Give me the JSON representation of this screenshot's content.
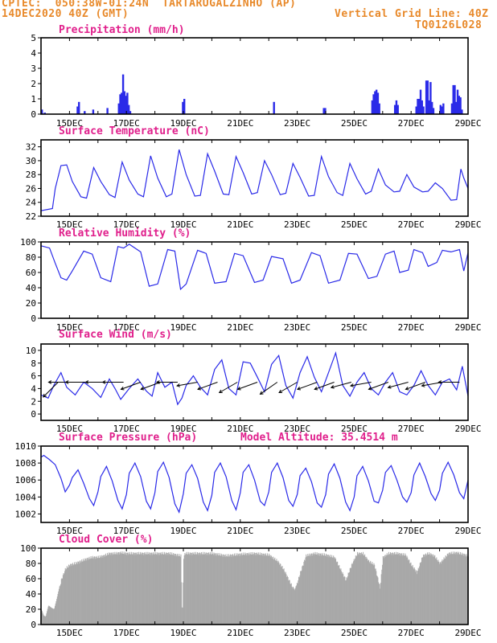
{
  "header": {
    "line1": "CPTEC:  050:38W-01:24N  TARTARUGALZINHO (AP)",
    "line2_left": "14DEC2020 40Z (GMT)",
    "line2_right": "Vertical Grid Line: 40Z",
    "line3_right": "TQ0126L028"
  },
  "colors": {
    "header": "#e8892a",
    "title": "#e0208c",
    "line": "#2a2ae8",
    "bar": "#2a2ae8",
    "cloud": "#a8a8a8",
    "arrow": "#000000"
  },
  "x_axis": {
    "labels": [
      "15DEC",
      "17DEC",
      "19DEC",
      "21DEC",
      "23DEC",
      "25DEC",
      "27DEC",
      "29DEC"
    ],
    "range_days": [
      14.0,
      29.0
    ]
  },
  "chart_data": [
    {
      "id": "precip",
      "type": "bar",
      "title": "Precipitation (mm/h)",
      "ylim": [
        0,
        5
      ],
      "yticks": [
        0,
        1,
        2,
        3,
        4,
        5
      ],
      "x": [
        14.0,
        14.1,
        15.25,
        15.3,
        15.5,
        15.8,
        16.3,
        16.7,
        16.75,
        16.8,
        16.85,
        16.9,
        16.95,
        17.0,
        17.05,
        17.1,
        18.95,
        19.0,
        22.15,
        23.9,
        23.95,
        25.6,
        25.65,
        25.7,
        25.75,
        25.8,
        25.85,
        26.4,
        26.45,
        26.5,
        27.15,
        27.2,
        27.25,
        27.3,
        27.35,
        27.4,
        27.5,
        27.55,
        27.6,
        27.65,
        27.7,
        27.75,
        28.0,
        28.05,
        28.1,
        28.4,
        28.45,
        28.5,
        28.55,
        28.6,
        28.65,
        28.7,
        28.75
      ],
      "values": [
        0.3,
        0.1,
        0.5,
        0.8,
        0.2,
        0.3,
        0.4,
        0.7,
        1.3,
        1.4,
        2.6,
        1.5,
        1.2,
        1.4,
        0.6,
        0.2,
        0.8,
        1.0,
        0.8,
        0.4,
        0.4,
        0.9,
        1.3,
        1.5,
        1.6,
        1.4,
        0.7,
        0.6,
        0.9,
        0.6,
        0.5,
        1.0,
        1.0,
        1.6,
        0.9,
        0.5,
        2.2,
        2.2,
        0.9,
        2.1,
        0.8,
        0.4,
        0.6,
        0.5,
        0.7,
        0.7,
        1.9,
        1.9,
        0.8,
        1.6,
        1.2,
        1.1,
        0.3
      ]
    },
    {
      "id": "temp",
      "type": "line",
      "title": "Surface Temperature (nC)",
      "ylim": [
        22,
        33
      ],
      "yticks": [
        22,
        24,
        26,
        28,
        30,
        32
      ],
      "x": [
        14.0,
        14.4,
        14.5,
        14.7,
        14.9,
        15.1,
        15.4,
        15.6,
        15.85,
        16.1,
        16.4,
        16.6,
        16.85,
        17.1,
        17.4,
        17.6,
        17.85,
        18.1,
        18.4,
        18.6,
        18.85,
        19.1,
        19.4,
        19.6,
        19.85,
        20.1,
        20.4,
        20.6,
        20.85,
        21.1,
        21.4,
        21.6,
        21.85,
        22.1,
        22.4,
        22.6,
        22.85,
        23.1,
        23.4,
        23.6,
        23.85,
        24.1,
        24.4,
        24.6,
        24.85,
        25.1,
        25.4,
        25.6,
        25.85,
        26.1,
        26.4,
        26.6,
        26.85,
        27.1,
        27.4,
        27.6,
        27.85,
        28.1,
        28.4,
        28.6,
        28.75,
        28.85,
        29.0
      ],
      "values": [
        22.8,
        23.1,
        26.0,
        29.3,
        29.4,
        27.0,
        24.8,
        24.6,
        29.0,
        27.0,
        25.1,
        24.7,
        29.8,
        27.2,
        25.2,
        24.8,
        30.7,
        27.5,
        24.8,
        25.2,
        31.6,
        28.0,
        24.9,
        25.0,
        31.0,
        28.5,
        25.2,
        25.1,
        30.6,
        28.3,
        25.2,
        25.4,
        30.0,
        28.0,
        25.1,
        25.3,
        29.6,
        27.6,
        24.9,
        25.0,
        30.6,
        27.7,
        25.4,
        25.0,
        29.6,
        27.4,
        25.2,
        25.6,
        28.8,
        26.5,
        25.5,
        25.6,
        28.0,
        26.2,
        25.5,
        25.6,
        26.8,
        26.0,
        24.3,
        24.4,
        28.8,
        27.5,
        26.0
      ]
    },
    {
      "id": "rh",
      "type": "line",
      "title": "Relative Humidity (%)",
      "ylim": [
        0,
        100
      ],
      "yticks": [
        0,
        20,
        40,
        60,
        80,
        100
      ],
      "x": [
        14.0,
        14.3,
        14.5,
        14.7,
        14.9,
        15.1,
        15.5,
        15.8,
        16.1,
        16.45,
        16.7,
        16.9,
        17.1,
        17.5,
        17.8,
        18.1,
        18.45,
        18.7,
        18.9,
        19.1,
        19.5,
        19.8,
        20.1,
        20.5,
        20.8,
        21.1,
        21.5,
        21.8,
        22.1,
        22.5,
        22.8,
        23.1,
        23.5,
        23.8,
        24.1,
        24.5,
        24.8,
        25.1,
        25.5,
        25.8,
        26.1,
        26.4,
        26.6,
        26.9,
        27.1,
        27.4,
        27.6,
        27.9,
        28.1,
        28.4,
        28.7,
        28.85,
        29.0
      ],
      "values": [
        95,
        92,
        72,
        53,
        50,
        62,
        88,
        84,
        53,
        48,
        94,
        92,
        97,
        87,
        42,
        45,
        90,
        88,
        38,
        45,
        89,
        85,
        46,
        48,
        85,
        82,
        47,
        50,
        81,
        78,
        46,
        50,
        86,
        82,
        46,
        50,
        85,
        84,
        52,
        55,
        84,
        88,
        60,
        63,
        90,
        86,
        68,
        73,
        89,
        87,
        90,
        62,
        86
      ]
    },
    {
      "id": "wind",
      "type": "line",
      "title": "Surface Wind (m/s)",
      "ylim": [
        -1,
        11
      ],
      "yticks": [
        0,
        2,
        4,
        6,
        8,
        10
      ],
      "x": [
        14.0,
        14.25,
        14.45,
        14.7,
        14.9,
        15.2,
        15.5,
        15.8,
        16.1,
        16.4,
        16.6,
        16.8,
        17.1,
        17.4,
        17.7,
        17.9,
        18.1,
        18.35,
        18.6,
        18.8,
        18.95,
        19.1,
        19.35,
        19.6,
        19.85,
        20.1,
        20.35,
        20.6,
        20.85,
        21.1,
        21.35,
        21.6,
        21.85,
        22.1,
        22.35,
        22.6,
        22.85,
        23.1,
        23.35,
        23.6,
        23.85,
        24.1,
        24.35,
        24.6,
        24.85,
        25.1,
        25.35,
        25.6,
        25.85,
        26.1,
        26.35,
        26.6,
        26.85,
        27.1,
        27.35,
        27.6,
        27.85,
        28.1,
        28.35,
        28.6,
        28.8,
        29.0
      ],
      "values": [
        3.0,
        2.5,
        4.5,
        6.5,
        4.2,
        3.0,
        5.0,
        4.0,
        2.6,
        5.5,
        4.0,
        2.3,
        4.0,
        5.5,
        3.6,
        2.8,
        6.5,
        4.2,
        5.0,
        1.5,
        2.5,
        4.5,
        6.0,
        4.2,
        3.0,
        7.0,
        8.5,
        4.0,
        3.0,
        8.2,
        8.0,
        5.8,
        3.5,
        7.8,
        9.2,
        4.5,
        2.5,
        6.5,
        9.0,
        5.8,
        3.5,
        6.5,
        9.6,
        4.5,
        2.8,
        5.0,
        6.5,
        4.0,
        3.0,
        5.0,
        6.5,
        3.5,
        3.0,
        4.5,
        6.8,
        4.5,
        3.0,
        5.0,
        5.5,
        3.8,
        7.5,
        2.8
      ],
      "arrows": [
        {
          "day": 14.6,
          "speed": 4.5,
          "angle": 225
        },
        {
          "day": 15.0,
          "speed": 5,
          "angle": 180
        },
        {
          "day": 15.6,
          "speed": 5,
          "angle": 180
        },
        {
          "day": 16.3,
          "speed": 5,
          "angle": 180
        },
        {
          "day": 16.9,
          "speed": 5,
          "angle": 180
        },
        {
          "day": 17.5,
          "speed": 5,
          "angle": 200
        },
        {
          "day": 18.2,
          "speed": 5,
          "angle": 200
        },
        {
          "day": 18.8,
          "speed": 5,
          "angle": 180
        },
        {
          "day": 19.5,
          "speed": 5,
          "angle": 190
        },
        {
          "day": 20.2,
          "speed": 5,
          "angle": 200
        },
        {
          "day": 20.9,
          "speed": 5,
          "angle": 210
        },
        {
          "day": 21.6,
          "speed": 5,
          "angle": 200
        },
        {
          "day": 22.3,
          "speed": 5,
          "angle": 215
        },
        {
          "day": 23.0,
          "speed": 5,
          "angle": 210
        },
        {
          "day": 23.7,
          "speed": 5,
          "angle": 200
        },
        {
          "day": 24.3,
          "speed": 5,
          "angle": 200
        },
        {
          "day": 24.9,
          "speed": 5,
          "angle": 195
        },
        {
          "day": 25.6,
          "speed": 5,
          "angle": 190
        },
        {
          "day": 26.2,
          "speed": 5,
          "angle": 200
        },
        {
          "day": 26.9,
          "speed": 5,
          "angle": 195
        },
        {
          "day": 27.5,
          "speed": 5,
          "angle": 200
        },
        {
          "day": 28.1,
          "speed": 5,
          "angle": 190
        },
        {
          "day": 28.7,
          "speed": 5,
          "angle": 180
        }
      ]
    },
    {
      "id": "press",
      "type": "line",
      "title": "Surface Pressure (hPa)",
      "subtitle": "Model Altitude: 35.4514 m",
      "ylim": [
        1001,
        1010
      ],
      "yticks": [
        1002,
        1004,
        1006,
        1008,
        1010
      ],
      "x": [
        14.0,
        14.1,
        14.3,
        14.5,
        14.7,
        14.85,
        15.0,
        15.1,
        15.3,
        15.5,
        15.7,
        15.85,
        16.0,
        16.1,
        16.3,
        16.5,
        16.7,
        16.85,
        17.0,
        17.1,
        17.3,
        17.5,
        17.7,
        17.85,
        18.0,
        18.1,
        18.3,
        18.5,
        18.7,
        18.85,
        19.0,
        19.1,
        19.3,
        19.5,
        19.7,
        19.85,
        20.0,
        20.1,
        20.3,
        20.5,
        20.7,
        20.85,
        21.0,
        21.1,
        21.3,
        21.5,
        21.7,
        21.85,
        22.0,
        22.1,
        22.3,
        22.5,
        22.7,
        22.85,
        23.0,
        23.1,
        23.3,
        23.5,
        23.7,
        23.85,
        24.0,
        24.1,
        24.3,
        24.5,
        24.7,
        24.85,
        25.0,
        25.1,
        25.3,
        25.5,
        25.7,
        25.85,
        26.0,
        26.1,
        26.3,
        26.5,
        26.7,
        26.85,
        27.0,
        27.1,
        27.3,
        27.5,
        27.7,
        27.85,
        28.0,
        28.1,
        28.3,
        28.5,
        28.7,
        28.85,
        29.0
      ],
      "values": [
        1008.7,
        1008.9,
        1008.4,
        1007.8,
        1006.2,
        1004.6,
        1005.4,
        1006.3,
        1007.2,
        1005.6,
        1003.8,
        1003.0,
        1004.6,
        1006.4,
        1007.6,
        1005.9,
        1003.6,
        1002.6,
        1004.3,
        1006.8,
        1008.0,
        1006.4,
        1003.5,
        1002.6,
        1004.5,
        1007.0,
        1008.1,
        1006.3,
        1003.2,
        1002.2,
        1004.4,
        1006.8,
        1007.8,
        1006.2,
        1003.4,
        1002.4,
        1004.2,
        1006.9,
        1008.0,
        1006.4,
        1003.6,
        1002.5,
        1004.5,
        1006.9,
        1007.8,
        1006.0,
        1003.5,
        1003.0,
        1004.6,
        1006.9,
        1008.0,
        1006.3,
        1003.6,
        1002.9,
        1004.3,
        1006.5,
        1007.4,
        1005.8,
        1003.3,
        1002.8,
        1004.3,
        1006.7,
        1007.9,
        1006.2,
        1003.4,
        1002.4,
        1004.0,
        1006.5,
        1007.6,
        1005.9,
        1003.5,
        1003.3,
        1004.8,
        1006.9,
        1007.7,
        1006.0,
        1004.0,
        1003.4,
        1004.5,
        1006.6,
        1008.0,
        1006.4,
        1004.4,
        1003.6,
        1004.8,
        1006.8,
        1008.1,
        1006.6,
        1004.5,
        1003.8,
        1006.0
      ]
    },
    {
      "id": "cloud",
      "type": "area",
      "title": "Cloud Cover (%)",
      "ylim": [
        0,
        100
      ],
      "yticks": [
        0,
        20,
        40,
        60,
        80,
        100
      ],
      "x": [
        14.0,
        14.08,
        14.15,
        14.25,
        14.35,
        14.45,
        14.55,
        14.7,
        14.85,
        15.0,
        15.2,
        15.4,
        15.6,
        15.8,
        16.0,
        16.2,
        16.4,
        16.6,
        16.8,
        17.0,
        17.5,
        18.0,
        18.5,
        18.9,
        18.95,
        19.0,
        19.05,
        19.5,
        20.0,
        20.5,
        21.0,
        21.5,
        22.0,
        22.3,
        22.4,
        22.5,
        22.7,
        22.9,
        23.1,
        23.3,
        23.6,
        24.0,
        24.3,
        24.5,
        24.7,
        24.9,
        25.1,
        25.3,
        25.5,
        25.7,
        25.9,
        26.0,
        26.2,
        26.5,
        26.8,
        27.0,
        27.2,
        27.4,
        27.6,
        27.8,
        28.0,
        28.3,
        28.6,
        29.0
      ],
      "values": [
        20,
        12,
        10,
        25,
        22,
        20,
        35,
        60,
        75,
        80,
        82,
        85,
        88,
        90,
        90,
        92,
        95,
        95,
        96,
        95,
        95,
        95,
        95,
        92,
        5,
        90,
        95,
        95,
        95,
        92,
        94,
        95,
        93,
        85,
        80,
        75,
        60,
        45,
        70,
        92,
        95,
        93,
        90,
        75,
        60,
        80,
        95,
        95,
        85,
        80,
        50,
        90,
        95,
        95,
        93,
        80,
        70,
        92,
        95,
        92,
        82,
        95,
        96,
        92
      ]
    }
  ]
}
